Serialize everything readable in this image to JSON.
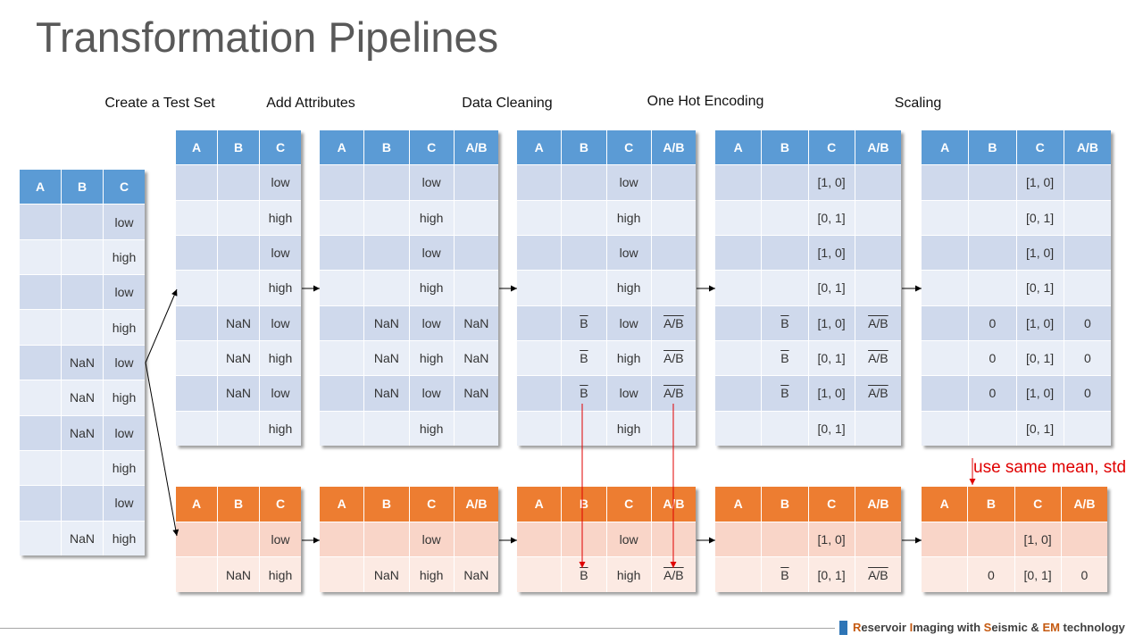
{
  "slide": {
    "title": "Transformation Pipelines",
    "stages": [
      "Create a Test Set",
      "Add Attributes",
      "Data Cleaning",
      "One Hot Encoding",
      "Scaling"
    ],
    "annotation": "use same mean, std",
    "footer": {
      "segments": [
        "R",
        "eservoir ",
        "I",
        "maging with ",
        "S",
        "eismic & ",
        "EM",
        " technology"
      ]
    }
  },
  "colors": {
    "title": "#595959",
    "header_blue": "#5B9BD5",
    "band_blue": "#CFD9EC",
    "row_blue": "#E9EEF7",
    "header_orange": "#ED7D31",
    "band_orange": "#F9D5C8",
    "row_orange": "#FCEAE3",
    "annotation": "#E00000",
    "footer_accent": "#C55A11",
    "footer_mark": "#2E75B6"
  },
  "tables": {
    "source": {
      "headers": [
        "A",
        "B",
        "C"
      ],
      "rows": [
        [
          "",
          "",
          "low"
        ],
        [
          "",
          "",
          "high"
        ],
        [
          "",
          "",
          "low"
        ],
        [
          "",
          "",
          "high"
        ],
        [
          "",
          "NaN",
          "low"
        ],
        [
          "",
          "NaN",
          "high"
        ],
        [
          "",
          "NaN",
          "low"
        ],
        [
          "",
          "",
          "high"
        ],
        [
          "",
          "",
          "low"
        ],
        [
          "",
          "NaN",
          "high"
        ]
      ]
    },
    "train_1": {
      "headers": [
        "A",
        "B",
        "C"
      ],
      "rows": [
        [
          "",
          "",
          "low"
        ],
        [
          "",
          "",
          "high"
        ],
        [
          "",
          "",
          "low"
        ],
        [
          "",
          "",
          "high"
        ],
        [
          "",
          "NaN",
          "low"
        ],
        [
          "",
          "NaN",
          "high"
        ],
        [
          "",
          "NaN",
          "low"
        ],
        [
          "",
          "",
          "high"
        ]
      ]
    },
    "train_2": {
      "headers": [
        "A",
        "B",
        "C",
        "A/B"
      ],
      "rows": [
        [
          "",
          "",
          "low",
          ""
        ],
        [
          "",
          "",
          "high",
          ""
        ],
        [
          "",
          "",
          "low",
          ""
        ],
        [
          "",
          "",
          "high",
          ""
        ],
        [
          "",
          "NaN",
          "low",
          "NaN"
        ],
        [
          "",
          "NaN",
          "high",
          "NaN"
        ],
        [
          "",
          "NaN",
          "low",
          "NaN"
        ],
        [
          "",
          "",
          "high",
          ""
        ]
      ]
    },
    "train_3": {
      "headers": [
        "A",
        "B",
        "C",
        "A/B"
      ],
      "rows": [
        [
          "",
          "",
          "low",
          ""
        ],
        [
          "",
          "",
          "high",
          ""
        ],
        [
          "",
          "",
          "low",
          ""
        ],
        [
          "",
          "",
          "high",
          ""
        ],
        [
          "",
          {
            "text": "B",
            "overline": true
          },
          "low",
          {
            "text": "A/B",
            "overline": true
          }
        ],
        [
          "",
          {
            "text": "B",
            "overline": true
          },
          "high",
          {
            "text": "A/B",
            "overline": true
          }
        ],
        [
          "",
          {
            "text": "B",
            "overline": true
          },
          "low",
          {
            "text": "A/B",
            "overline": true
          }
        ],
        [
          "",
          "",
          "high",
          ""
        ]
      ]
    },
    "train_4": {
      "headers": [
        "A",
        "B",
        "C",
        "A/B"
      ],
      "rows": [
        [
          "",
          "",
          "[1, 0]",
          ""
        ],
        [
          "",
          "",
          "[0, 1]",
          ""
        ],
        [
          "",
          "",
          "[1, 0]",
          ""
        ],
        [
          "",
          "",
          "[0, 1]",
          ""
        ],
        [
          "",
          {
            "text": "B",
            "overline": true
          },
          "[1, 0]",
          {
            "text": "A/B",
            "overline": true
          }
        ],
        [
          "",
          {
            "text": "B",
            "overline": true
          },
          "[0, 1]",
          {
            "text": "A/B",
            "overline": true
          }
        ],
        [
          "",
          {
            "text": "B",
            "overline": true
          },
          "[1, 0]",
          {
            "text": "A/B",
            "overline": true
          }
        ],
        [
          "",
          "",
          "[0, 1]",
          ""
        ]
      ]
    },
    "train_5": {
      "headers": [
        "A",
        "B",
        "C",
        "A/B"
      ],
      "rows": [
        [
          "",
          "",
          "[1, 0]",
          ""
        ],
        [
          "",
          "",
          "[0, 1]",
          ""
        ],
        [
          "",
          "",
          "[1, 0]",
          ""
        ],
        [
          "",
          "",
          "[0, 1]",
          ""
        ],
        [
          "",
          "0",
          "[1, 0]",
          "0"
        ],
        [
          "",
          "0",
          "[0, 1]",
          "0"
        ],
        [
          "",
          "0",
          "[1, 0]",
          "0"
        ],
        [
          "",
          "",
          "[0, 1]",
          ""
        ]
      ]
    },
    "test_1": {
      "headers": [
        "A",
        "B",
        "C"
      ],
      "rows": [
        [
          "",
          "",
          "low"
        ],
        [
          "",
          "NaN",
          "high"
        ]
      ]
    },
    "test_2": {
      "headers": [
        "A",
        "B",
        "C",
        "A/B"
      ],
      "rows": [
        [
          "",
          "",
          "low",
          ""
        ],
        [
          "",
          "NaN",
          "high",
          "NaN"
        ]
      ]
    },
    "test_3": {
      "headers": [
        "A",
        "B",
        "C",
        "A/B"
      ],
      "rows": [
        [
          "",
          "",
          "low",
          ""
        ],
        [
          "",
          {
            "text": "B",
            "overline": true
          },
          "high",
          {
            "text": "A/B",
            "overline": true
          }
        ]
      ]
    },
    "test_4": {
      "headers": [
        "A",
        "B",
        "C",
        "A/B"
      ],
      "rows": [
        [
          "",
          "",
          "[1, 0]",
          ""
        ],
        [
          "",
          {
            "text": "B",
            "overline": true
          },
          "[0, 1]",
          {
            "text": "A/B",
            "overline": true
          }
        ]
      ]
    },
    "test_5": {
      "headers": [
        "A",
        "B",
        "C",
        "A/B"
      ],
      "rows": [
        [
          "",
          "",
          "[1, 0]",
          ""
        ],
        [
          "",
          "0",
          "[0, 1]",
          "0"
        ]
      ]
    }
  }
}
